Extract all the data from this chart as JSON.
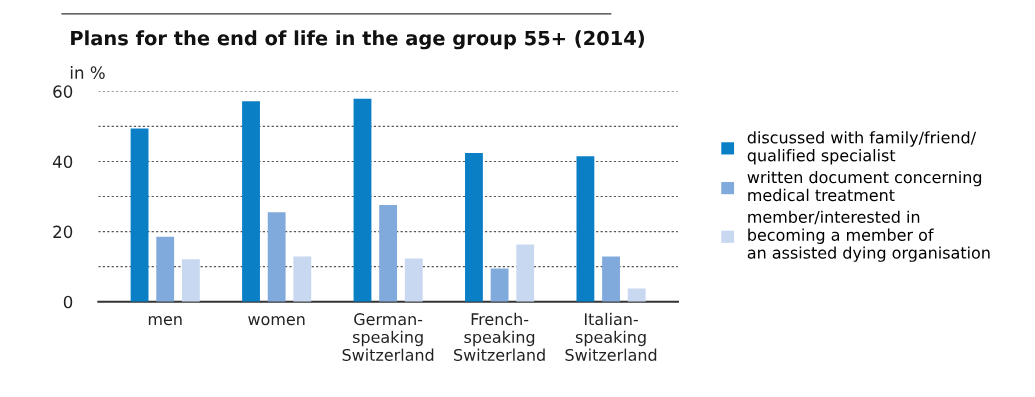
{
  "chart_data": {
    "type": "bar",
    "title": "Plans for the end of life in the age group 55+ (2014)",
    "ylabel": "in %",
    "categories": [
      "men",
      "women",
      "German-\nspeaking\nSwitzerland",
      "French-\nspeaking\nSwitzerland",
      "Italian-\nspeaking\nSwitzerland"
    ],
    "series": [
      {
        "name": "discussed with family/friend/\nqualified specialist",
        "color": "#0a7fc6",
        "values": [
          49.4,
          57.2,
          57.9,
          42.4,
          41.5
        ]
      },
      {
        "name": "written document concerning\nmedical treatment",
        "color": "#80a9dc",
        "values": [
          18.5,
          25.5,
          27.6,
          9.5,
          12.9
        ]
      },
      {
        "name": "member/interested in\nbecoming a member of\nan assisted dying organisation",
        "color": "#c8d8f0",
        "values": [
          12.1,
          12.9,
          12.3,
          16.3,
          3.8
        ]
      }
    ],
    "ylim": [
      0,
      60
    ],
    "yticks": [
      0,
      {
        "value": 10,
        "label": null
      },
      20,
      {
        "value": 30,
        "label": null
      },
      40,
      {
        "value": 50,
        "label": null
      },
      60
    ],
    "grid": "y",
    "legend": "right"
  }
}
